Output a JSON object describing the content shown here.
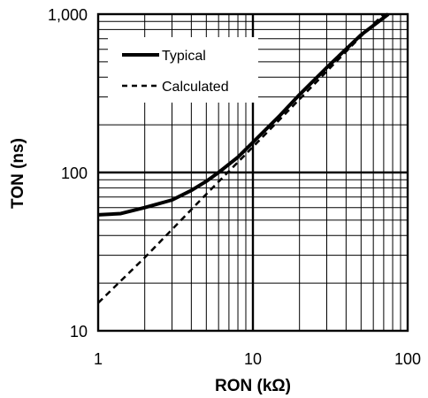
{
  "chart_data": {
    "type": "line",
    "xlabel": "RON (kΩ)",
    "ylabel": "TON (ns)",
    "x_scale": "log",
    "y_scale": "log",
    "xlim": [
      1,
      100
    ],
    "ylim": [
      10,
      1000
    ],
    "x_tick_labels": [
      {
        "value": 1,
        "label": "1"
      },
      {
        "value": 10,
        "label": "10"
      },
      {
        "value": 100,
        "label": "100"
      }
    ],
    "y_tick_labels": [
      {
        "value": 10,
        "label": "10"
      },
      {
        "value": 100,
        "label": "100"
      },
      {
        "value": 1000,
        "label": "1,000"
      }
    ],
    "grid": true,
    "legend_position": "top-left",
    "series": [
      {
        "name": "Typical",
        "style": "solid",
        "color": "#000000",
        "x": [
          1,
          1.4,
          2,
          3,
          4,
          5,
          6,
          8,
          10,
          15,
          20,
          30,
          50,
          75
        ],
        "y": [
          54,
          55,
          60,
          67,
          77,
          88,
          100,
          125,
          155,
          230,
          310,
          460,
          740,
          1000
        ]
      },
      {
        "name": "Calculated",
        "style": "dashed",
        "color": "#000000",
        "x": [
          1,
          2,
          5,
          10,
          20,
          50,
          70
        ],
        "y": [
          15,
          29,
          73,
          145,
          290,
          725,
          1000
        ]
      }
    ]
  }
}
